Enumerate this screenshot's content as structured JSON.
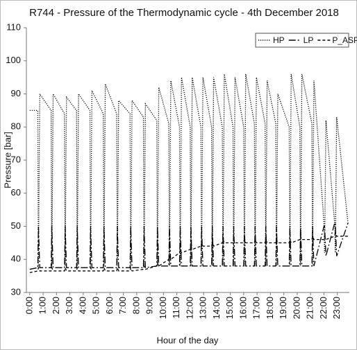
{
  "chart_data": {
    "type": "line",
    "title": "R744 - Pressure of the Thermodynamic cycle - 4th December 2018",
    "ylabel": "Pressure [bar]",
    "xlabel": "Hour of the day",
    "x": [
      0,
      0.6,
      0.65,
      0.75,
      1.6,
      1.65,
      1.75,
      2.6,
      2.65,
      2.75,
      3.5,
      3.55,
      3.65,
      4.5,
      4.55,
      4.65,
      5.5,
      5.55,
      5.65,
      6.5,
      6.55,
      6.65,
      7.5,
      7.55,
      7.65,
      8.5,
      8.55,
      8.65,
      9.5,
      9.55,
      9.65,
      10.4,
      10.45,
      10.55,
      11.2,
      11.25,
      11.35,
      12.0,
      12.05,
      12.15,
      12.8,
      12.85,
      12.95,
      13.6,
      13.65,
      13.75,
      14.4,
      14.45,
      14.55,
      15.2,
      15.25,
      15.35,
      16.0,
      16.05,
      16.15,
      16.8,
      16.85,
      16.95,
      17.6,
      17.65,
      17.75,
      18.4,
      18.45,
      18.55,
      19.4,
      19.45,
      19.55,
      20.2,
      20.25,
      20.35,
      21.1,
      21.15,
      21.25,
      22.0,
      22.05,
      22.15,
      22.8,
      22.85,
      22.95,
      23.8
    ],
    "series": [
      {
        "name": "HP",
        "color": "#000000",
        "dash": "dot",
        "values": [
          85,
          85,
          38,
          90,
          85,
          38,
          90,
          84,
          38,
          89,
          85,
          38,
          90,
          85,
          38,
          91,
          84,
          38,
          93,
          84,
          38,
          88,
          84,
          38,
          88,
          83,
          38,
          87,
          82,
          38,
          92,
          81,
          38,
          94,
          80,
          38,
          95,
          80,
          38,
          95,
          80,
          38,
          95,
          80,
          38,
          95,
          80,
          38,
          96,
          80,
          38,
          95,
          80,
          38,
          96,
          81,
          38,
          95,
          81,
          38,
          94,
          81,
          38,
          90,
          80,
          38,
          96,
          80,
          38,
          96,
          81,
          38,
          94,
          51,
          42,
          82,
          51,
          42,
          83,
          51
        ]
      },
      {
        "name": "LP",
        "color": "#000000",
        "dash": "dashdot",
        "values": [
          37,
          37.5,
          50,
          37.5,
          37.5,
          50,
          37.5,
          37.5,
          50,
          37.5,
          37.5,
          50,
          37.5,
          37.5,
          50,
          37.5,
          37.5,
          50,
          37.5,
          37.5,
          50,
          37.5,
          37.5,
          50,
          37.5,
          37.5,
          50,
          37.5,
          38,
          50,
          38,
          38,
          50,
          38,
          38,
          50,
          38,
          38,
          50,
          38,
          38,
          50,
          38,
          38,
          50,
          38,
          38,
          50,
          38,
          38,
          50,
          38,
          38,
          50,
          38,
          38,
          50,
          38,
          38,
          50,
          38,
          38,
          50,
          38,
          38,
          50,
          38,
          38,
          50,
          38,
          38,
          50,
          38,
          50,
          50,
          41,
          51,
          51,
          41,
          51
        ]
      },
      {
        "name": "P_ASP",
        "color": "#000000",
        "dash": "dash",
        "values": [
          36,
          36.5,
          37.5,
          36.5,
          36.5,
          37.5,
          36.5,
          36.5,
          37.5,
          36.5,
          36.5,
          37.5,
          36.5,
          36.5,
          37.5,
          36.5,
          36.5,
          37.5,
          36.5,
          36.5,
          37.5,
          36.5,
          36.5,
          37.5,
          36.5,
          37,
          38,
          37,
          38,
          39,
          38,
          40,
          41,
          40,
          42,
          43,
          42,
          43,
          44,
          43,
          44,
          45,
          44,
          44,
          45,
          44,
          45,
          46,
          45,
          45,
          46,
          45,
          45,
          46,
          45,
          45,
          46,
          45,
          45,
          46,
          45,
          45,
          46,
          45,
          45,
          46,
          45,
          46,
          47,
          46,
          46,
          47,
          46,
          46,
          47,
          46,
          47,
          48,
          47,
          47
        ]
      }
    ],
    "xlim": [
      -0.25,
      23.9
    ],
    "xticks": [
      {
        "value": 0,
        "label": "0:00"
      },
      {
        "value": 1,
        "label": "1:00"
      },
      {
        "value": 2,
        "label": "2:00"
      },
      {
        "value": 3,
        "label": "3:00"
      },
      {
        "value": 4,
        "label": "4:00"
      },
      {
        "value": 5,
        "label": "5:00"
      },
      {
        "value": 6,
        "label": "6:00"
      },
      {
        "value": 7,
        "label": "7:00"
      },
      {
        "value": 8,
        "label": "8:00"
      },
      {
        "value": 9,
        "label": "9:00"
      },
      {
        "value": 10,
        "label": "10:00"
      },
      {
        "value": 11,
        "label": "11:00"
      },
      {
        "value": 12,
        "label": "12:00"
      },
      {
        "value": 13,
        "label": "13:00"
      },
      {
        "value": 14,
        "label": "14:00"
      },
      {
        "value": 15,
        "label": "15:00"
      },
      {
        "value": 16,
        "label": "16:00"
      },
      {
        "value": 17,
        "label": "17:00"
      },
      {
        "value": 18,
        "label": "18:00"
      },
      {
        "value": 19,
        "label": "19:00"
      },
      {
        "value": 20,
        "label": "20:00"
      },
      {
        "value": 21,
        "label": "21:00"
      },
      {
        "value": 22,
        "label": "22:00"
      },
      {
        "value": 23,
        "label": "23:00"
      }
    ],
    "ylim": [
      30,
      110
    ],
    "yticks": [
      30,
      40,
      50,
      60,
      70,
      80,
      90,
      100,
      110
    ],
    "grid": false,
    "legend": "top-right"
  }
}
